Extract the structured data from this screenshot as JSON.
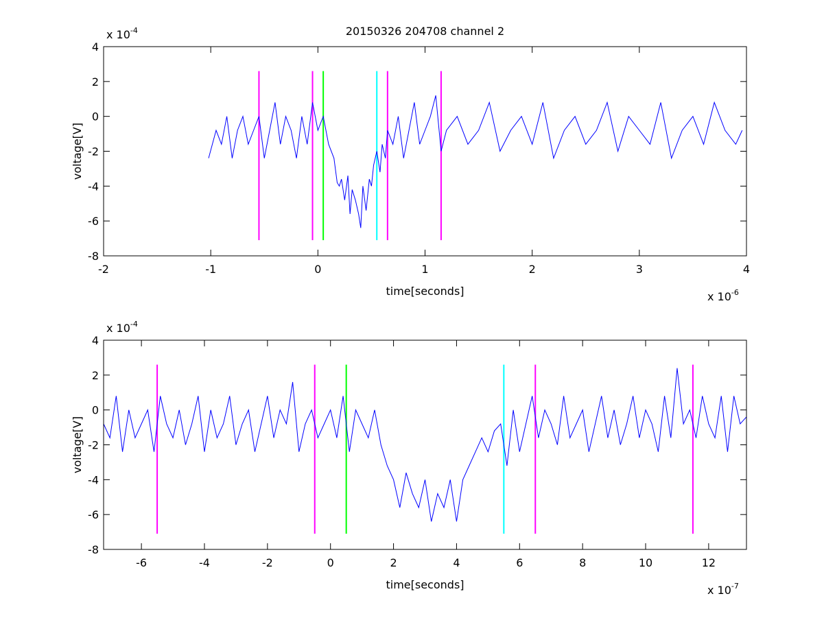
{
  "chart_data": [
    {
      "type": "line",
      "title": "20150326 204708 channel 2",
      "xlabel": "time[seconds]",
      "ylabel": "voltage[V]",
      "x_multiplier": "x 10",
      "x_exponent": "-6",
      "y_multiplier": "x 10",
      "y_exponent": "-4",
      "xlim": [
        -2,
        4
      ],
      "ylim": [
        -8,
        4
      ],
      "xticks": [
        -2,
        -1,
        0,
        1,
        2,
        3,
        4
      ],
      "yticks": [
        -8,
        -6,
        -4,
        -2,
        0,
        2,
        4
      ],
      "series": [
        {
          "color": "#0000ff",
          "x": [
            -1.02,
            -0.95,
            -0.9,
            -0.85,
            -0.8,
            -0.75,
            -0.7,
            -0.65,
            -0.6,
            -0.55,
            -0.5,
            -0.45,
            -0.4,
            -0.35,
            -0.3,
            -0.25,
            -0.2,
            -0.15,
            -0.1,
            -0.05,
            0.0,
            0.05,
            0.1,
            0.15,
            0.18,
            0.2,
            0.22,
            0.25,
            0.28,
            0.3,
            0.32,
            0.35,
            0.38,
            0.4,
            0.42,
            0.45,
            0.48,
            0.5,
            0.52,
            0.55,
            0.58,
            0.6,
            0.63,
            0.65,
            0.7,
            0.75,
            0.8,
            0.85,
            0.9,
            0.95,
            1.0,
            1.05,
            1.1,
            1.15,
            1.2,
            1.3,
            1.4,
            1.5,
            1.6,
            1.7,
            1.8,
            1.9,
            2.0,
            2.1,
            2.2,
            2.3,
            2.4,
            2.5,
            2.6,
            2.7,
            2.8,
            2.9,
            3.0,
            3.1,
            3.2,
            3.3,
            3.4,
            3.5,
            3.6,
            3.7,
            3.8,
            3.9,
            3.96
          ],
          "y": [
            -2.4,
            -0.8,
            -1.6,
            0.0,
            -2.4,
            -0.8,
            0.0,
            -1.6,
            -0.8,
            0.0,
            -2.4,
            -0.8,
            0.8,
            -1.6,
            0.0,
            -0.8,
            -2.4,
            0.0,
            -1.6,
            0.8,
            -0.8,
            0.0,
            -1.6,
            -2.4,
            -3.8,
            -4.0,
            -3.6,
            -4.8,
            -3.4,
            -5.6,
            -4.2,
            -4.8,
            -5.6,
            -6.4,
            -4.0,
            -5.4,
            -3.6,
            -4.0,
            -2.8,
            -2.0,
            -3.2,
            -1.6,
            -2.4,
            -0.8,
            -1.6,
            0.0,
            -2.4,
            -0.8,
            0.8,
            -1.6,
            -0.8,
            0.0,
            1.2,
            -2.0,
            -0.8,
            0.0,
            -1.6,
            -0.8,
            0.8,
            -2.0,
            -0.8,
            0.0,
            -1.6,
            0.8,
            -2.4,
            -0.8,
            0.0,
            -1.6,
            -0.8,
            0.8,
            -2.0,
            0.0,
            -0.8,
            -1.6,
            0.8,
            -2.4,
            -0.8,
            0.0,
            -1.6,
            0.8,
            -0.8,
            -1.6,
            -0.8
          ]
        }
      ],
      "markers": [
        {
          "x": -0.55,
          "color": "#ff00ff"
        },
        {
          "x": -0.05,
          "color": "#ff00ff"
        },
        {
          "x": 0.05,
          "color": "#00ff00"
        },
        {
          "x": 0.55,
          "color": "#00ffff"
        },
        {
          "x": 0.65,
          "color": "#ff00ff"
        },
        {
          "x": 1.15,
          "color": "#ff00ff"
        }
      ],
      "marker_range": [
        -7.1,
        2.6
      ]
    },
    {
      "type": "line",
      "title": "",
      "xlabel": "time[seconds]",
      "ylabel": "voltage[V]",
      "x_multiplier": "x 10",
      "x_exponent": "-7",
      "y_multiplier": "x 10",
      "y_exponent": "-4",
      "xlim": [
        -7.2,
        13.2
      ],
      "ylim": [
        -8,
        4
      ],
      "xticks": [
        -6,
        -4,
        -2,
        0,
        2,
        4,
        6,
        8,
        10,
        12
      ],
      "yticks": [
        -8,
        -6,
        -4,
        -2,
        0,
        2,
        4
      ],
      "series": [
        {
          "color": "#0000ff",
          "x": [
            -7.2,
            -7.0,
            -6.8,
            -6.6,
            -6.4,
            -6.2,
            -6.0,
            -5.8,
            -5.6,
            -5.4,
            -5.2,
            -5.0,
            -4.8,
            -4.6,
            -4.4,
            -4.2,
            -4.0,
            -3.8,
            -3.6,
            -3.4,
            -3.2,
            -3.0,
            -2.8,
            -2.6,
            -2.4,
            -2.2,
            -2.0,
            -1.8,
            -1.6,
            -1.4,
            -1.2,
            -1.0,
            -0.8,
            -0.6,
            -0.4,
            -0.2,
            0.0,
            0.2,
            0.4,
            0.6,
            0.8,
            1.0,
            1.2,
            1.4,
            1.6,
            1.8,
            2.0,
            2.2,
            2.4,
            2.6,
            2.8,
            3.0,
            3.2,
            3.4,
            3.6,
            3.8,
            4.0,
            4.2,
            4.4,
            4.6,
            4.8,
            5.0,
            5.2,
            5.4,
            5.6,
            5.8,
            6.0,
            6.2,
            6.4,
            6.6,
            6.8,
            7.0,
            7.2,
            7.4,
            7.6,
            7.8,
            8.0,
            8.2,
            8.4,
            8.6,
            8.8,
            9.0,
            9.2,
            9.4,
            9.6,
            9.8,
            10.0,
            10.2,
            10.4,
            10.6,
            10.8,
            11.0,
            11.2,
            11.4,
            11.6,
            11.8,
            12.0,
            12.2,
            12.4,
            12.6,
            12.8,
            13.0,
            13.2
          ],
          "y": [
            -0.8,
            -1.6,
            0.8,
            -2.4,
            0.0,
            -1.6,
            -0.8,
            0.0,
            -2.4,
            0.8,
            -0.8,
            -1.6,
            0.0,
            -2.0,
            -0.8,
            0.8,
            -2.4,
            0.0,
            -1.6,
            -0.8,
            0.8,
            -2.0,
            -0.8,
            0.0,
            -2.4,
            -0.8,
            0.8,
            -1.6,
            0.0,
            -0.8,
            1.6,
            -2.4,
            -0.8,
            0.0,
            -1.6,
            -0.8,
            0.0,
            -1.6,
            0.8,
            -2.4,
            0.0,
            -0.8,
            -1.6,
            0.0,
            -2.0,
            -3.2,
            -4.0,
            -5.6,
            -3.6,
            -4.8,
            -5.6,
            -4.0,
            -6.4,
            -4.8,
            -5.6,
            -4.0,
            -6.4,
            -4.0,
            -3.2,
            -2.4,
            -1.6,
            -2.4,
            -1.2,
            -0.8,
            -3.2,
            0.0,
            -2.4,
            -0.8,
            0.8,
            -1.6,
            0.0,
            -0.8,
            -2.0,
            0.8,
            -1.6,
            -0.8,
            0.0,
            -2.4,
            -0.8,
            0.8,
            -1.6,
            0.0,
            -2.0,
            -0.8,
            0.8,
            -1.6,
            0.0,
            -0.8,
            -2.4,
            0.8,
            -1.6,
            2.4,
            -0.8,
            0.0,
            -1.6,
            0.8,
            -0.8,
            -1.6,
            0.8,
            -2.4,
            0.8,
            -0.8,
            -0.4
          ]
        }
      ],
      "markers": [
        {
          "x": -5.5,
          "color": "#ff00ff"
        },
        {
          "x": -0.5,
          "color": "#ff00ff"
        },
        {
          "x": 0.5,
          "color": "#00ff00"
        },
        {
          "x": 5.5,
          "color": "#00ffff"
        },
        {
          "x": 6.5,
          "color": "#ff00ff"
        },
        {
          "x": 11.5,
          "color": "#ff00ff"
        }
      ],
      "marker_range": [
        -7.1,
        2.6
      ]
    }
  ]
}
